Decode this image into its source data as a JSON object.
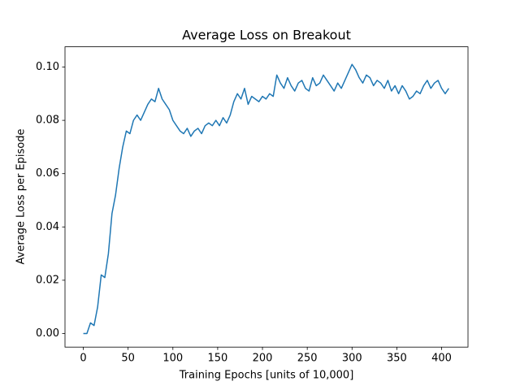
{
  "chart_data": {
    "type": "line",
    "title": "Average Loss on Breakout",
    "x_label": "Training Epochs [units of 10,000]",
    "y_label": "Average Loss per Episode",
    "color": "#1f77b4",
    "x": [
      0,
      4,
      8,
      12,
      16,
      20,
      24,
      28,
      32,
      36,
      40,
      44,
      48,
      52,
      56,
      60,
      64,
      68,
      72,
      76,
      80,
      84,
      88,
      92,
      96,
      100,
      104,
      108,
      112,
      116,
      120,
      124,
      128,
      132,
      136,
      140,
      144,
      148,
      152,
      156,
      160,
      164,
      168,
      172,
      176,
      180,
      184,
      188,
      192,
      196,
      200,
      204,
      208,
      212,
      216,
      220,
      224,
      228,
      232,
      236,
      240,
      244,
      248,
      252,
      256,
      260,
      264,
      268,
      272,
      276,
      280,
      284,
      288,
      292,
      296,
      300,
      304,
      308,
      312,
      316,
      320,
      324,
      328,
      332,
      336,
      340,
      344,
      348,
      352,
      356,
      360,
      364,
      368,
      372,
      376,
      380,
      384,
      388,
      392,
      396,
      400,
      404,
      408
    ],
    "values": [
      0,
      0,
      0.004,
      0.003,
      0.01,
      0.022,
      0.021,
      0.03,
      0.045,
      0.052,
      0.062,
      0.07,
      0.076,
      0.075,
      0.08,
      0.082,
      0.08,
      0.083,
      0.086,
      0.088,
      0.087,
      0.092,
      0.088,
      0.086,
      0.084,
      0.08,
      0.078,
      0.076,
      0.075,
      0.077,
      0.074,
      0.076,
      0.077,
      0.075,
      0.078,
      0.079,
      0.078,
      0.08,
      0.078,
      0.081,
      0.079,
      0.082,
      0.087,
      0.09,
      0.088,
      0.092,
      0.086,
      0.089,
      0.088,
      0.087,
      0.089,
      0.088,
      0.09,
      0.089,
      0.097,
      0.094,
      0.092,
      0.096,
      0.093,
      0.091,
      0.094,
      0.095,
      0.092,
      0.091,
      0.096,
      0.093,
      0.094,
      0.097,
      0.095,
      0.093,
      0.091,
      0.094,
      0.092,
      0.095,
      0.098,
      0.101,
      0.099,
      0.096,
      0.094,
      0.097,
      0.096,
      0.093,
      0.095,
      0.094,
      0.092,
      0.095,
      0.091,
      0.093,
      0.09,
      0.093,
      0.091,
      0.088,
      0.089,
      0.091,
      0.09,
      0.093,
      0.095,
      0.092,
      0.094,
      0.095,
      0.092,
      0.09,
      0.092
    ],
    "xlim": [
      -20.45,
      429.45
    ],
    "ylim": [
      -0.0051,
      0.1076
    ],
    "xticks": [
      0,
      50,
      100,
      150,
      200,
      250,
      300,
      350,
      400
    ],
    "yticks": [
      {
        "value": 0,
        "label": "0.00"
      },
      {
        "value": 0.02,
        "label": "0.02"
      },
      {
        "value": 0.04,
        "label": "0.04"
      },
      {
        "value": 0.06,
        "label": "0.06"
      },
      {
        "value": 0.08,
        "label": "0.08"
      },
      {
        "value": 0.1,
        "label": "0.10"
      }
    ]
  }
}
